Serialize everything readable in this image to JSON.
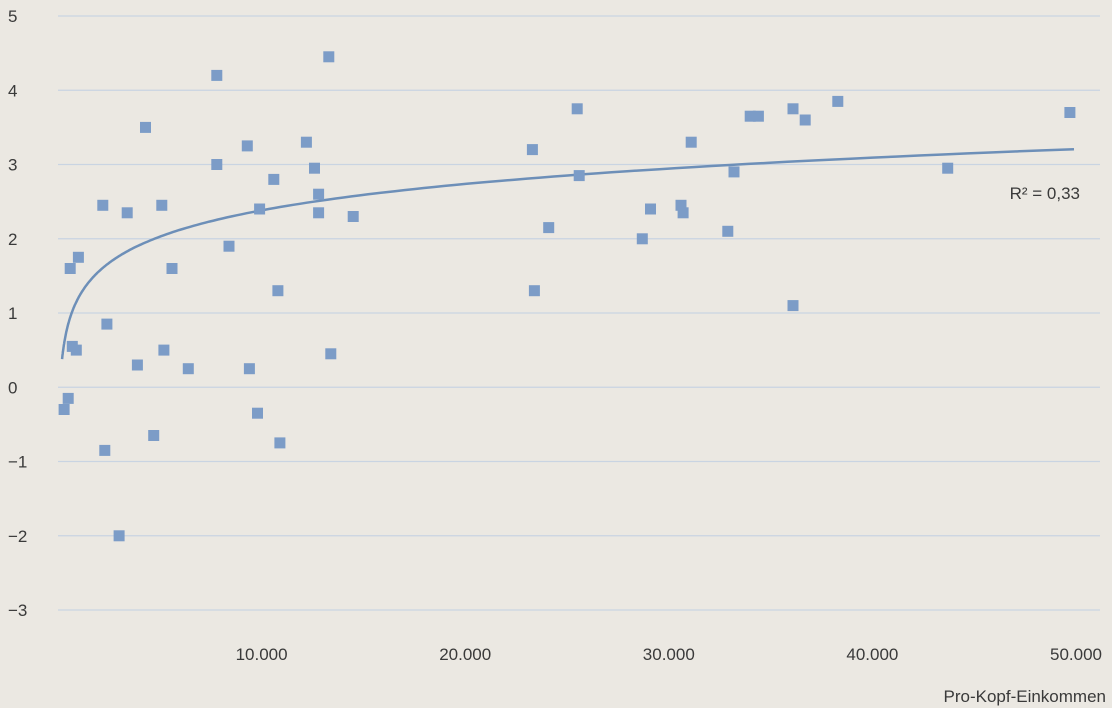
{
  "chart_data": {
    "type": "scatter",
    "title": "",
    "xlabel": "Pro-Kopf-Einkommen",
    "ylabel": "",
    "xlim": [
      0,
      50000
    ],
    "ylim": [
      -3,
      5
    ],
    "x_ticks": [
      10000,
      20000,
      30000,
      40000,
      50000
    ],
    "x_tick_labels": [
      "10.000",
      "20.000",
      "30.000",
      "40.000",
      "50.000"
    ],
    "y_ticks": [
      -3,
      -2,
      -1,
      0,
      1,
      2,
      3,
      4,
      5
    ],
    "y_tick_labels": [
      "−3",
      "−2",
      "−1",
      "0",
      "1",
      "2",
      "3",
      "4",
      "5"
    ],
    "grid": "horizontal",
    "annotation": "R² = 0,33",
    "colors": {
      "points": "#7c9cc7",
      "trend": "#6d8fb8",
      "grid": "#c9d4e2",
      "background": "#ebe8e2"
    },
    "trendline": {
      "type": "logarithmic",
      "a": -2.333,
      "b": 0.512
    },
    "points": [
      {
        "x": 300,
        "y": -0.3
      },
      {
        "x": 500,
        "y": -0.15
      },
      {
        "x": 600,
        "y": 1.6
      },
      {
        "x": 700,
        "y": 0.55
      },
      {
        "x": 900,
        "y": 0.5
      },
      {
        "x": 1000,
        "y": 1.75
      },
      {
        "x": 2200,
        "y": 2.45
      },
      {
        "x": 2300,
        "y": -0.85
      },
      {
        "x": 2400,
        "y": 0.85
      },
      {
        "x": 3000,
        "y": -2.0
      },
      {
        "x": 3400,
        "y": 2.35
      },
      {
        "x": 3900,
        "y": 0.3
      },
      {
        "x": 4300,
        "y": 3.5
      },
      {
        "x": 4700,
        "y": -0.65
      },
      {
        "x": 5100,
        "y": 2.45
      },
      {
        "x": 5200,
        "y": 0.5
      },
      {
        "x": 5600,
        "y": 1.6
      },
      {
        "x": 6400,
        "y": 0.25
      },
      {
        "x": 7800,
        "y": 4.2
      },
      {
        "x": 7800,
        "y": 3.0
      },
      {
        "x": 8400,
        "y": 1.9
      },
      {
        "x": 9300,
        "y": 3.25
      },
      {
        "x": 9400,
        "y": 0.25
      },
      {
        "x": 9800,
        "y": -0.35
      },
      {
        "x": 9900,
        "y": 2.4
      },
      {
        "x": 10600,
        "y": 2.8
      },
      {
        "x": 10800,
        "y": 1.3
      },
      {
        "x": 10900,
        "y": -0.75
      },
      {
        "x": 12200,
        "y": 3.3
      },
      {
        "x": 12600,
        "y": 2.95
      },
      {
        "x": 12800,
        "y": 2.35
      },
      {
        "x": 12800,
        "y": 2.6
      },
      {
        "x": 13300,
        "y": 4.45
      },
      {
        "x": 13400,
        "y": 0.45
      },
      {
        "x": 14500,
        "y": 2.3
      },
      {
        "x": 23300,
        "y": 3.2
      },
      {
        "x": 23400,
        "y": 1.3
      },
      {
        "x": 24100,
        "y": 2.15
      },
      {
        "x": 25500,
        "y": 3.75
      },
      {
        "x": 25600,
        "y": 2.85
      },
      {
        "x": 28700,
        "y": 2.0
      },
      {
        "x": 29100,
        "y": 2.4
      },
      {
        "x": 30600,
        "y": 2.45
      },
      {
        "x": 30700,
        "y": 2.35
      },
      {
        "x": 31100,
        "y": 3.3
      },
      {
        "x": 32900,
        "y": 2.1
      },
      {
        "x": 33200,
        "y": 2.9
      },
      {
        "x": 34000,
        "y": 3.65
      },
      {
        "x": 34400,
        "y": 3.65
      },
      {
        "x": 36100,
        "y": 3.75
      },
      {
        "x": 36100,
        "y": 1.1
      },
      {
        "x": 36700,
        "y": 3.6
      },
      {
        "x": 38300,
        "y": 3.85
      },
      {
        "x": 43700,
        "y": 2.95
      },
      {
        "x": 49700,
        "y": 3.7
      }
    ]
  }
}
